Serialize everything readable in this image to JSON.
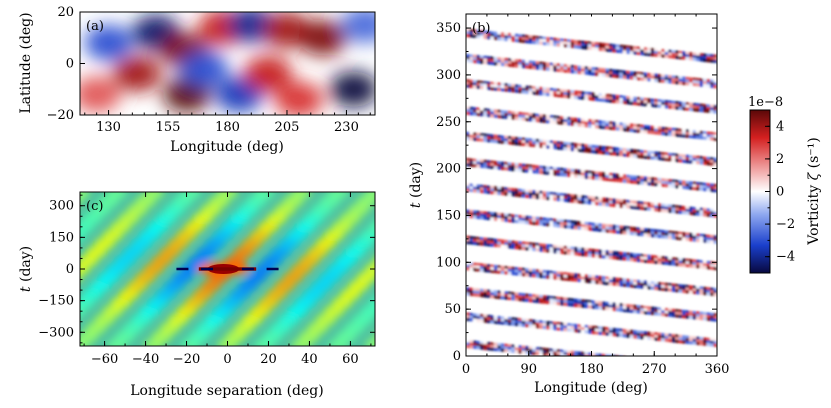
{
  "panels": {
    "a": {
      "tag": "(a)",
      "xlabel": "Longitude (deg)",
      "ylabel": "Latitude (deg)",
      "xticks": [
        "130",
        "155",
        "180",
        "205",
        "230"
      ],
      "yticks": [
        "20",
        "0",
        "−20"
      ]
    },
    "b": {
      "tag": "(b)",
      "xlabel": "Longitude (deg)",
      "ylabel_italic": "t",
      "ylabel_rest": " (day)",
      "xticks": [
        "0",
        "90",
        "180",
        "270",
        "360"
      ],
      "yticks": [
        "0",
        "50",
        "100",
        "150",
        "200",
        "250",
        "300",
        "350"
      ]
    },
    "c": {
      "tag": "(c)",
      "xlabel": "Longitude separation (deg)",
      "ylabel_italic": "t",
      "ylabel_rest": " (day)",
      "xticks": [
        "−60",
        "−40",
        "−20",
        "0",
        "20",
        "40",
        "60"
      ],
      "yticks": [
        "300",
        "150",
        "0",
        "−150",
        "−300"
      ]
    }
  },
  "colorbar": {
    "offset_label": "1e−8",
    "label_prefix": "Vorticity ",
    "label_symbol": "ζ",
    "label_units": " (s⁻¹)",
    "ticks": [
      "4",
      "2",
      "0",
      "−2",
      "−4"
    ],
    "colors": [
      "#08083f",
      "#1a3fcc",
      "#8fa8f0",
      "#ffffff",
      "#f0a0a0",
      "#d42020",
      "#5a0808"
    ]
  },
  "chart_data": [
    {
      "panel": "a",
      "type": "heatmap",
      "xlabel": "Longitude (deg)",
      "ylabel": "Latitude (deg)",
      "xlim": [
        118,
        242
      ],
      "ylim": [
        -20,
        20
      ],
      "colormap": "blue-white-red",
      "clim": [
        -5e-08,
        5e-08
      ],
      "blobs": [
        {
          "lon": 130,
          "lat": 8,
          "value": -0.6
        },
        {
          "lon": 125,
          "lat": -12,
          "value": 0.5
        },
        {
          "lon": 142,
          "lat": -4,
          "value": 0.8
        },
        {
          "lon": 150,
          "lat": 12,
          "value": -0.9
        },
        {
          "lon": 162,
          "lat": 5,
          "value": 0.9
        },
        {
          "lon": 163,
          "lat": -12,
          "value": 1.0
        },
        {
          "lon": 170,
          "lat": -2,
          "value": -0.6
        },
        {
          "lon": 178,
          "lat": 14,
          "value": 0.7
        },
        {
          "lon": 185,
          "lat": -12,
          "value": -0.7
        },
        {
          "lon": 190,
          "lat": 15,
          "value": -0.8
        },
        {
          "lon": 197,
          "lat": -4,
          "value": 0.7
        },
        {
          "lon": 205,
          "lat": 13,
          "value": 0.8
        },
        {
          "lon": 210,
          "lat": -14,
          "value": 0.6
        },
        {
          "lon": 220,
          "lat": 10,
          "value": 0.9
        },
        {
          "lon": 233,
          "lat": -10,
          "value": -1.0
        },
        {
          "lon": 238,
          "lat": 15,
          "value": -0.5
        }
      ]
    },
    {
      "panel": "b",
      "type": "heatmap",
      "xlabel": "Longitude (deg)",
      "ylabel": "t (day)",
      "xlim": [
        0,
        360
      ],
      "ylim": [
        0,
        365
      ],
      "colormap": "blue-white-red",
      "clim": [
        -5e-08,
        5e-08
      ],
      "stripes": {
        "start_days": [
          13,
          42,
          69,
          96,
          124,
          152,
          180,
          207,
          235,
          262,
          291,
          318,
          345
        ],
        "drift_days_over_360deg": -28
      }
    },
    {
      "panel": "c",
      "type": "heatmap",
      "xlabel": "Longitude separation (deg)",
      "ylabel": "t (day)",
      "xlim": [
        -72,
        72
      ],
      "ylim": [
        -365,
        365
      ],
      "colormap": "jet",
      "peak": {
        "x": 0,
        "y": 0,
        "value": 1.0
      },
      "negative_lobes_x": [
        -20,
        20
      ],
      "ridge_slope_deg_per_day": 0.1
    }
  ]
}
